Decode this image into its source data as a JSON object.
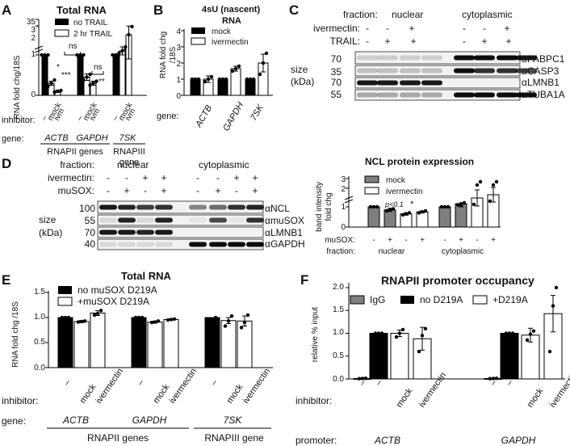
{
  "panels": {
    "A": {
      "letter": "A",
      "title": "Total RNA",
      "ylabel": "RNA fold chg/18S",
      "yticks": [
        "0",
        "1",
        "2",
        "3",
        "35"
      ],
      "legend": [
        "no TRAIL",
        "2 hr TRAIL"
      ],
      "inhibitor_label": "inhibitor:",
      "inhibitors": [
        "–",
        "mock",
        "ivm",
        "–",
        "mock",
        "ivm",
        "–",
        "mock",
        "ivm"
      ],
      "gene_label": "gene:",
      "genes": [
        "ACTB",
        "GAPDH",
        "7SK"
      ],
      "groups": [
        "RNAPII genes",
        "RNAPIII",
        "gene"
      ],
      "annotations": [
        "ns",
        "*",
        "***",
        "ns",
        "*",
        "**"
      ]
    },
    "B": {
      "letter": "B",
      "title": "4sU (nascent)",
      "title2": "RNA",
      "ylabel": "RNA fold chg",
      "ylabel2": "/18S",
      "yticks": [
        "0",
        "1",
        "2",
        "3",
        "4"
      ],
      "legend": [
        "mock",
        "ivermectin"
      ],
      "gene_label": "gene:",
      "genes": [
        "ACTB",
        "GAPDH",
        "7SK"
      ]
    },
    "C": {
      "letter": "C",
      "fraction_label": "fraction:",
      "fractions": [
        "nuclear",
        "cytoplasmic"
      ],
      "ivermectin_label": "ivermectin:",
      "trail_label": "TRAIL:",
      "ivm_signs": [
        "-",
        "-",
        "+",
        "-",
        "-",
        "+"
      ],
      "trail_signs": [
        "-",
        "+",
        "+",
        "-",
        "+",
        "+"
      ],
      "size_label": "size",
      "unit_label": "(kDa)",
      "markers": [
        "70",
        "35",
        "70",
        "55"
      ],
      "antibodies": [
        "αPABPC1",
        "αCASP3",
        "αLMNB1",
        "αTUBA1A"
      ]
    },
    "D": {
      "letter": "D",
      "fraction_label": "fraction:",
      "fractions": [
        "nuclear",
        "cytoplasmic"
      ],
      "ivermectin_label": "ivermectin:",
      "musox_label": "muSOX:",
      "ivm_signs": [
        "-",
        "-",
        "+",
        "+",
        "-",
        "-",
        "+",
        "+"
      ],
      "musox_signs": [
        "-",
        "+",
        "-",
        "+",
        "-",
        "+",
        "-",
        "+"
      ],
      "size_label": "size",
      "unit_label": "(kDa)",
      "markers": [
        "100",
        "55",
        "70",
        "40"
      ],
      "antibodies": [
        "αNCL",
        "αmuSOX",
        "αLMNB1",
        "αGAPDH"
      ],
      "chart_title": "NCL protein expression",
      "chart_ylabel": "band intensity",
      "chart_ylabel2": "fold chg",
      "chart_yticks": [
        "0",
        "1",
        "2",
        "3"
      ],
      "chart_legend": [
        "mock",
        "ivermectin"
      ],
      "annot_p": "p<0.1",
      "annot_star": "*",
      "x_musox_label": "muSOX:",
      "x_musox": [
        "-",
        "+",
        "-",
        "+",
        "-",
        "+",
        "-",
        "+"
      ],
      "x_fraction_label": "fraction:",
      "x_fractions": [
        "nuclear",
        "cytoplasmic"
      ]
    },
    "E": {
      "letter": "E",
      "title": "Total RNA",
      "ylabel": "RNA fold chg /18S",
      "yticks": [
        "0.0",
        "0.5",
        "1.0",
        "1.5"
      ],
      "legend": [
        "no muSOX D219A",
        "+muSOX D219A"
      ],
      "inhibitor_label": "inhibitor:",
      "inhibitors": [
        "–",
        "mock",
        "ivermectin",
        "–",
        "mock",
        "ivermectin",
        "–",
        "mock",
        "ivermectin"
      ],
      "gene_label": "gene:",
      "genes": [
        "ACTB",
        "GAPDH",
        "7SK"
      ],
      "groups": [
        "RNAPII genes",
        "RNAPIII gene"
      ]
    },
    "F": {
      "letter": "F",
      "title": "RNAPII promoter occupancy",
      "ylabel": "relative % input",
      "yticks": [
        "0.0",
        "0.5",
        "1.0",
        "1.5",
        "2.0"
      ],
      "legend": [
        "IgG",
        "no D219A",
        "+D219A"
      ],
      "inhibitor_label": "inhibitor:",
      "inhibitors": [
        "–",
        "–",
        "mock",
        "ivermectin",
        "–",
        "–",
        "mock",
        "ivermectin"
      ],
      "promoter_label": "promoter:",
      "promoters": [
        "ACTB",
        "GAPDH"
      ]
    }
  },
  "colors": {
    "black": "#000000",
    "gray": "#7f7f7f",
    "white": "#ffffff",
    "blot_bg": "#f0f0f0"
  },
  "chart_data": [
    {
      "type": "bar",
      "panel": "A",
      "title": "Total RNA",
      "ylabel": "RNA fold chg/18S",
      "categories": [
        "ACTB –",
        "ACTB mock",
        "ACTB ivm",
        "GAPDH –",
        "GAPDH mock",
        "GAPDH ivm",
        "7SK –",
        "7SK mock",
        "7SK ivm"
      ],
      "series": [
        {
          "name": "no TRAIL",
          "values": [
            1,
            null,
            null,
            1,
            null,
            null,
            1,
            null,
            null
          ]
        },
        {
          "name": "2 hr TRAIL",
          "values": [
            null,
            0.3,
            0.1,
            null,
            0.45,
            0.3,
            null,
            1.1,
            1.5
          ]
        }
      ],
      "ylim": [
        0,
        35
      ],
      "axis_break": [
        1.8,
        3
      ]
    },
    {
      "type": "bar",
      "panel": "B",
      "title": "4sU (nascent) RNA",
      "ylabel": "RNA fold chg /18S",
      "categories": [
        "ACTB",
        "GAPDH",
        "7SK"
      ],
      "series": [
        {
          "name": "mock",
          "values": [
            1,
            1,
            1
          ]
        },
        {
          "name": "ivermectin",
          "values": [
            1.0,
            1.65,
            2.0
          ]
        }
      ],
      "ylim": [
        0,
        4
      ]
    },
    {
      "type": "bar",
      "panel": "D",
      "title": "NCL protein expression",
      "ylabel": "band intensity fold chg",
      "categories": [
        "nuclear -",
        "nuclear +",
        "nuclear ivm -",
        "nuclear ivm +",
        "cytoplasmic -",
        "cytoplasmic +",
        "cytoplasmic ivm -",
        "cytoplasmic ivm +"
      ],
      "series": [
        {
          "name": "mock",
          "values": [
            1,
            0.85,
            null,
            null,
            1,
            1.15,
            null,
            null
          ]
        },
        {
          "name": "ivermectin",
          "values": [
            null,
            null,
            0.65,
            0.75,
            null,
            null,
            1.8,
            2.0
          ]
        }
      ],
      "ylim": [
        0,
        3
      ],
      "axis_break": [
        1.2,
        2.4
      ]
    },
    {
      "type": "bar",
      "panel": "E",
      "title": "Total RNA",
      "ylabel": "RNA fold chg /18S",
      "categories": [
        "ACTB –",
        "ACTB mock",
        "ACTB ivermectin",
        "GAPDH –",
        "GAPDH mock",
        "GAPDH ivermectin",
        "7SK –",
        "7SK mock",
        "7SK ivermectin"
      ],
      "series": [
        {
          "name": "no muSOX D219A",
          "values": [
            1,
            null,
            null,
            1,
            null,
            null,
            1,
            null,
            null
          ]
        },
        {
          "name": "+muSOX D219A",
          "values": [
            null,
            0.92,
            1.09,
            null,
            0.91,
            0.96,
            null,
            0.94,
            0.93
          ]
        }
      ],
      "ylim": [
        0,
        1.5
      ]
    },
    {
      "type": "bar",
      "panel": "F",
      "title": "RNAPII promoter occupancy",
      "ylabel": "relative % input",
      "categories": [
        "ACTB IgG",
        "ACTB –",
        "ACTB mock",
        "ACTB ivermectin",
        "GAPDH IgG",
        "GAPDH –",
        "GAPDH mock",
        "GAPDH ivermectin"
      ],
      "series": [
        {
          "name": "IgG",
          "values": [
            0.01,
            null,
            null,
            null,
            0.01,
            null,
            null,
            null
          ]
        },
        {
          "name": "no D219A",
          "values": [
            null,
            1,
            null,
            null,
            null,
            1,
            null,
            null
          ]
        },
        {
          "name": "+D219A",
          "values": [
            null,
            null,
            1.0,
            0.88,
            null,
            null,
            0.96,
            1.43
          ]
        }
      ],
      "ylim": [
        0,
        2.0
      ]
    }
  ]
}
